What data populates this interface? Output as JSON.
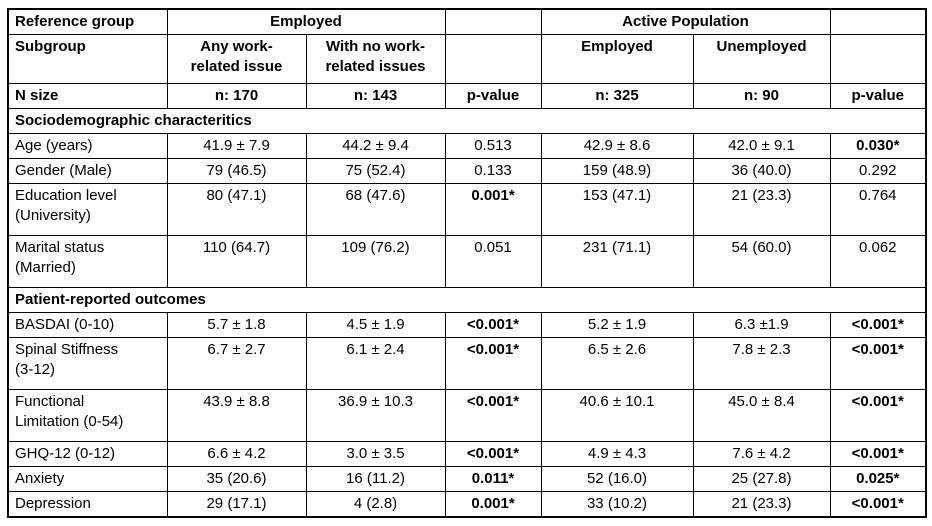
{
  "table": {
    "header": {
      "row1": {
        "ref_group": "Reference group",
        "employed_group": "Employed",
        "active_group": "Active Population"
      },
      "row2": {
        "subgroup": "Subgroup",
        "any_work_issue": "Any work-\nrelated issue",
        "no_work_issue": "With no work-\nrelated issues",
        "active_employed": "Employed",
        "active_unemployed": "Unemployed"
      },
      "row3": {
        "label": "N size",
        "n_any_work_issue": "n: 170",
        "n_no_work_issue": "n: 143",
        "p_value_1": "p-value",
        "n_active_employed": "n: 325",
        "n_active_unemployed": "n: 90",
        "p_value_2": "p-value"
      }
    },
    "sections": [
      {
        "title": "Sociodemographic characteritics",
        "rows": [
          {
            "label": "Age (years)",
            "cells": [
              {
                "t": "41.9 ± 7.9"
              },
              {
                "t": "44.2 ± 9.4"
              },
              {
                "t": "0.513"
              },
              {
                "t": "42.9 ± 8.6"
              },
              {
                "t": "42.0 ± 9.1"
              },
              {
                "t": "0.030*",
                "b": true
              }
            ]
          },
          {
            "label": "Gender (Male)",
            "cells": [
              {
                "t": "79 (46.5)"
              },
              {
                "t": "75 (52.4)"
              },
              {
                "t": "0.133"
              },
              {
                "t": "159 (48.9)"
              },
              {
                "t": "36 (40.0)"
              },
              {
                "t": "0.292"
              }
            ]
          },
          {
            "label": "Education level\n(University)",
            "cells": [
              {
                "t": "80 (47.1)"
              },
              {
                "t": "68 (47.6)"
              },
              {
                "t": "0.001*",
                "b": true
              },
              {
                "t": "153 (47.1)"
              },
              {
                "t": "21 (23.3)"
              },
              {
                "t": "0.764"
              }
            ]
          },
          {
            "label": "Marital status\n(Married)",
            "cells": [
              {
                "t": "110 (64.7)"
              },
              {
                "t": "109 (76.2)"
              },
              {
                "t": "0.051"
              },
              {
                "t": "231 (71.1)"
              },
              {
                "t": "54 (60.0)"
              },
              {
                "t": "0.062"
              }
            ]
          }
        ]
      },
      {
        "title": "Patient-reported outcomes",
        "rows": [
          {
            "label": "BASDAI (0-10)",
            "cells": [
              {
                "t": "5.7 ± 1.8"
              },
              {
                "t": "4.5 ± 1.9"
              },
              {
                "t": "<0.001*",
                "b": true
              },
              {
                "t": "5.2 ± 1.9"
              },
              {
                "t": "6.3 ±1.9"
              },
              {
                "t": "<0.001*",
                "b": true
              }
            ]
          },
          {
            "label": "Spinal Stiffness\n(3-12)",
            "cells": [
              {
                "t": "6.7 ± 2.7"
              },
              {
                "t": "6.1 ± 2.4"
              },
              {
                "t": "<0.001*",
                "b": true
              },
              {
                "t": "6.5 ± 2.6"
              },
              {
                "t": "7.8 ± 2.3"
              },
              {
                "t": "<0.001*",
                "b": true
              }
            ]
          },
          {
            "label": "Functional\nLimitation (0-54)",
            "cells": [
              {
                "t": "43.9 ± 8.8"
              },
              {
                "t": "36.9 ± 10.3"
              },
              {
                "t": "<0.001*",
                "b": true
              },
              {
                "t": "40.6 ± 10.1"
              },
              {
                "t": "45.0 ± 8.4"
              },
              {
                "t": "<0.001*",
                "b": true
              }
            ]
          },
          {
            "label": "GHQ-12 (0-12)",
            "cells": [
              {
                "t": "6.6 ± 4.2"
              },
              {
                "t": "3.0 ± 3.5"
              },
              {
                "t": "<0.001*",
                "b": true
              },
              {
                "t": "4.9 ± 4.3"
              },
              {
                "t": "7.6 ± 4.2"
              },
              {
                "t": "<0.001*",
                "b": true
              }
            ]
          },
          {
            "label": "Anxiety",
            "cells": [
              {
                "t": "35 (20.6)"
              },
              {
                "t": "16 (11.2)"
              },
              {
                "t": "0.011*",
                "b": true
              },
              {
                "t": "52 (16.0)"
              },
              {
                "t": "25 (27.8)"
              },
              {
                "t": "0.025*",
                "b": true
              }
            ]
          },
          {
            "label": "Depression",
            "cells": [
              {
                "t": "29 (17.1)"
              },
              {
                "t": "4 (2.8)"
              },
              {
                "t": "0.001*",
                "b": true
              },
              {
                "t": "33 (10.2)"
              },
              {
                "t": "21 (23.3)"
              },
              {
                "t": "<0.001*",
                "b": true
              }
            ]
          }
        ]
      }
    ],
    "column_keys": [
      "any-work-issue",
      "no-work-issue",
      "p-value-employed",
      "active-employed",
      "active-unemployed",
      "p-value-active"
    ],
    "border_color": "#000000",
    "background_color": "#ffffff"
  }
}
